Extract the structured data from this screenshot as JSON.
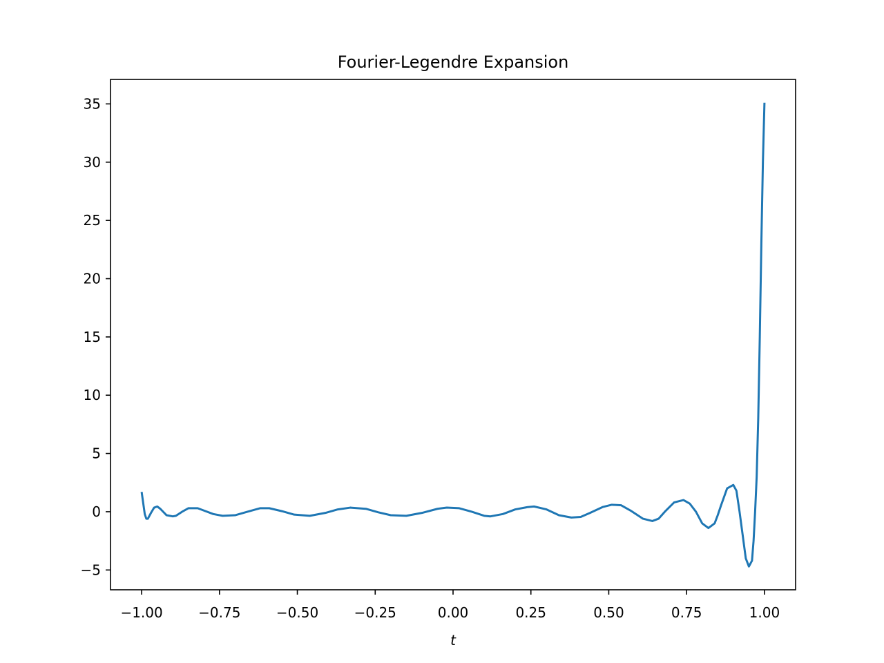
{
  "chart_data": {
    "type": "line",
    "title": "Fourier-Legendre Expansion",
    "xlabel": "t",
    "ylabel": "",
    "xlim": [
      -1.1,
      1.1
    ],
    "ylim": [
      -6.7,
      37.1
    ],
    "grid": false,
    "legend": "none",
    "x_ticks": [
      -1.0,
      -0.75,
      -0.5,
      -0.25,
      0.0,
      0.25,
      0.5,
      0.75,
      1.0
    ],
    "x_tick_labels": [
      "−1.00",
      "−0.75",
      "−0.50",
      "−0.25",
      "0.00",
      "0.25",
      "0.50",
      "0.75",
      "1.00"
    ],
    "y_ticks": [
      -5,
      0,
      5,
      10,
      15,
      20,
      25,
      30,
      35
    ],
    "y_tick_labels": [
      "−5",
      "0",
      "5",
      "10",
      "15",
      "20",
      "25",
      "30",
      "35"
    ],
    "series": [
      {
        "color": "#1f77b4",
        "x": [
          -1.0,
          -0.99,
          -0.985,
          -0.98,
          -0.97,
          -0.96,
          -0.95,
          -0.94,
          -0.92,
          -0.9,
          -0.89,
          -0.87,
          -0.85,
          -0.82,
          -0.8,
          -0.77,
          -0.74,
          -0.7,
          -0.66,
          -0.62,
          -0.59,
          -0.55,
          -0.51,
          -0.46,
          -0.41,
          -0.37,
          -0.33,
          -0.28,
          -0.24,
          -0.2,
          -0.15,
          -0.1,
          -0.05,
          -0.02,
          0.02,
          0.06,
          0.1,
          0.12,
          0.16,
          0.2,
          0.24,
          0.26,
          0.3,
          0.34,
          0.38,
          0.41,
          0.44,
          0.48,
          0.51,
          0.54,
          0.57,
          0.61,
          0.64,
          0.66,
          0.68,
          0.71,
          0.74,
          0.76,
          0.78,
          0.8,
          0.82,
          0.84,
          0.85,
          0.86,
          0.88,
          0.9,
          0.91,
          0.92,
          0.93,
          0.94,
          0.95,
          0.96,
          0.965,
          0.97,
          0.975,
          0.98,
          0.985,
          0.99,
          0.995,
          1.0
        ],
        "y": [
          1.7,
          -0.2,
          -0.6,
          -0.6,
          -0.1,
          0.35,
          0.45,
          0.25,
          -0.3,
          -0.4,
          -0.35,
          0.0,
          0.3,
          0.3,
          0.1,
          -0.2,
          -0.35,
          -0.3,
          0.0,
          0.3,
          0.3,
          0.05,
          -0.25,
          -0.35,
          -0.1,
          0.2,
          0.35,
          0.25,
          -0.05,
          -0.3,
          -0.35,
          -0.1,
          0.25,
          0.35,
          0.3,
          0.0,
          -0.35,
          -0.4,
          -0.2,
          0.2,
          0.4,
          0.45,
          0.2,
          -0.3,
          -0.5,
          -0.45,
          -0.1,
          0.4,
          0.6,
          0.55,
          0.1,
          -0.6,
          -0.8,
          -0.6,
          0.0,
          0.8,
          1.0,
          0.7,
          0.0,
          -1.0,
          -1.4,
          -1.0,
          -0.3,
          0.5,
          2.0,
          2.3,
          1.8,
          0.0,
          -2.0,
          -4.0,
          -4.7,
          -4.2,
          -2.5,
          0.0,
          3.0,
          8.0,
          15.0,
          23.0,
          30.0,
          35.1
        ]
      }
    ]
  }
}
